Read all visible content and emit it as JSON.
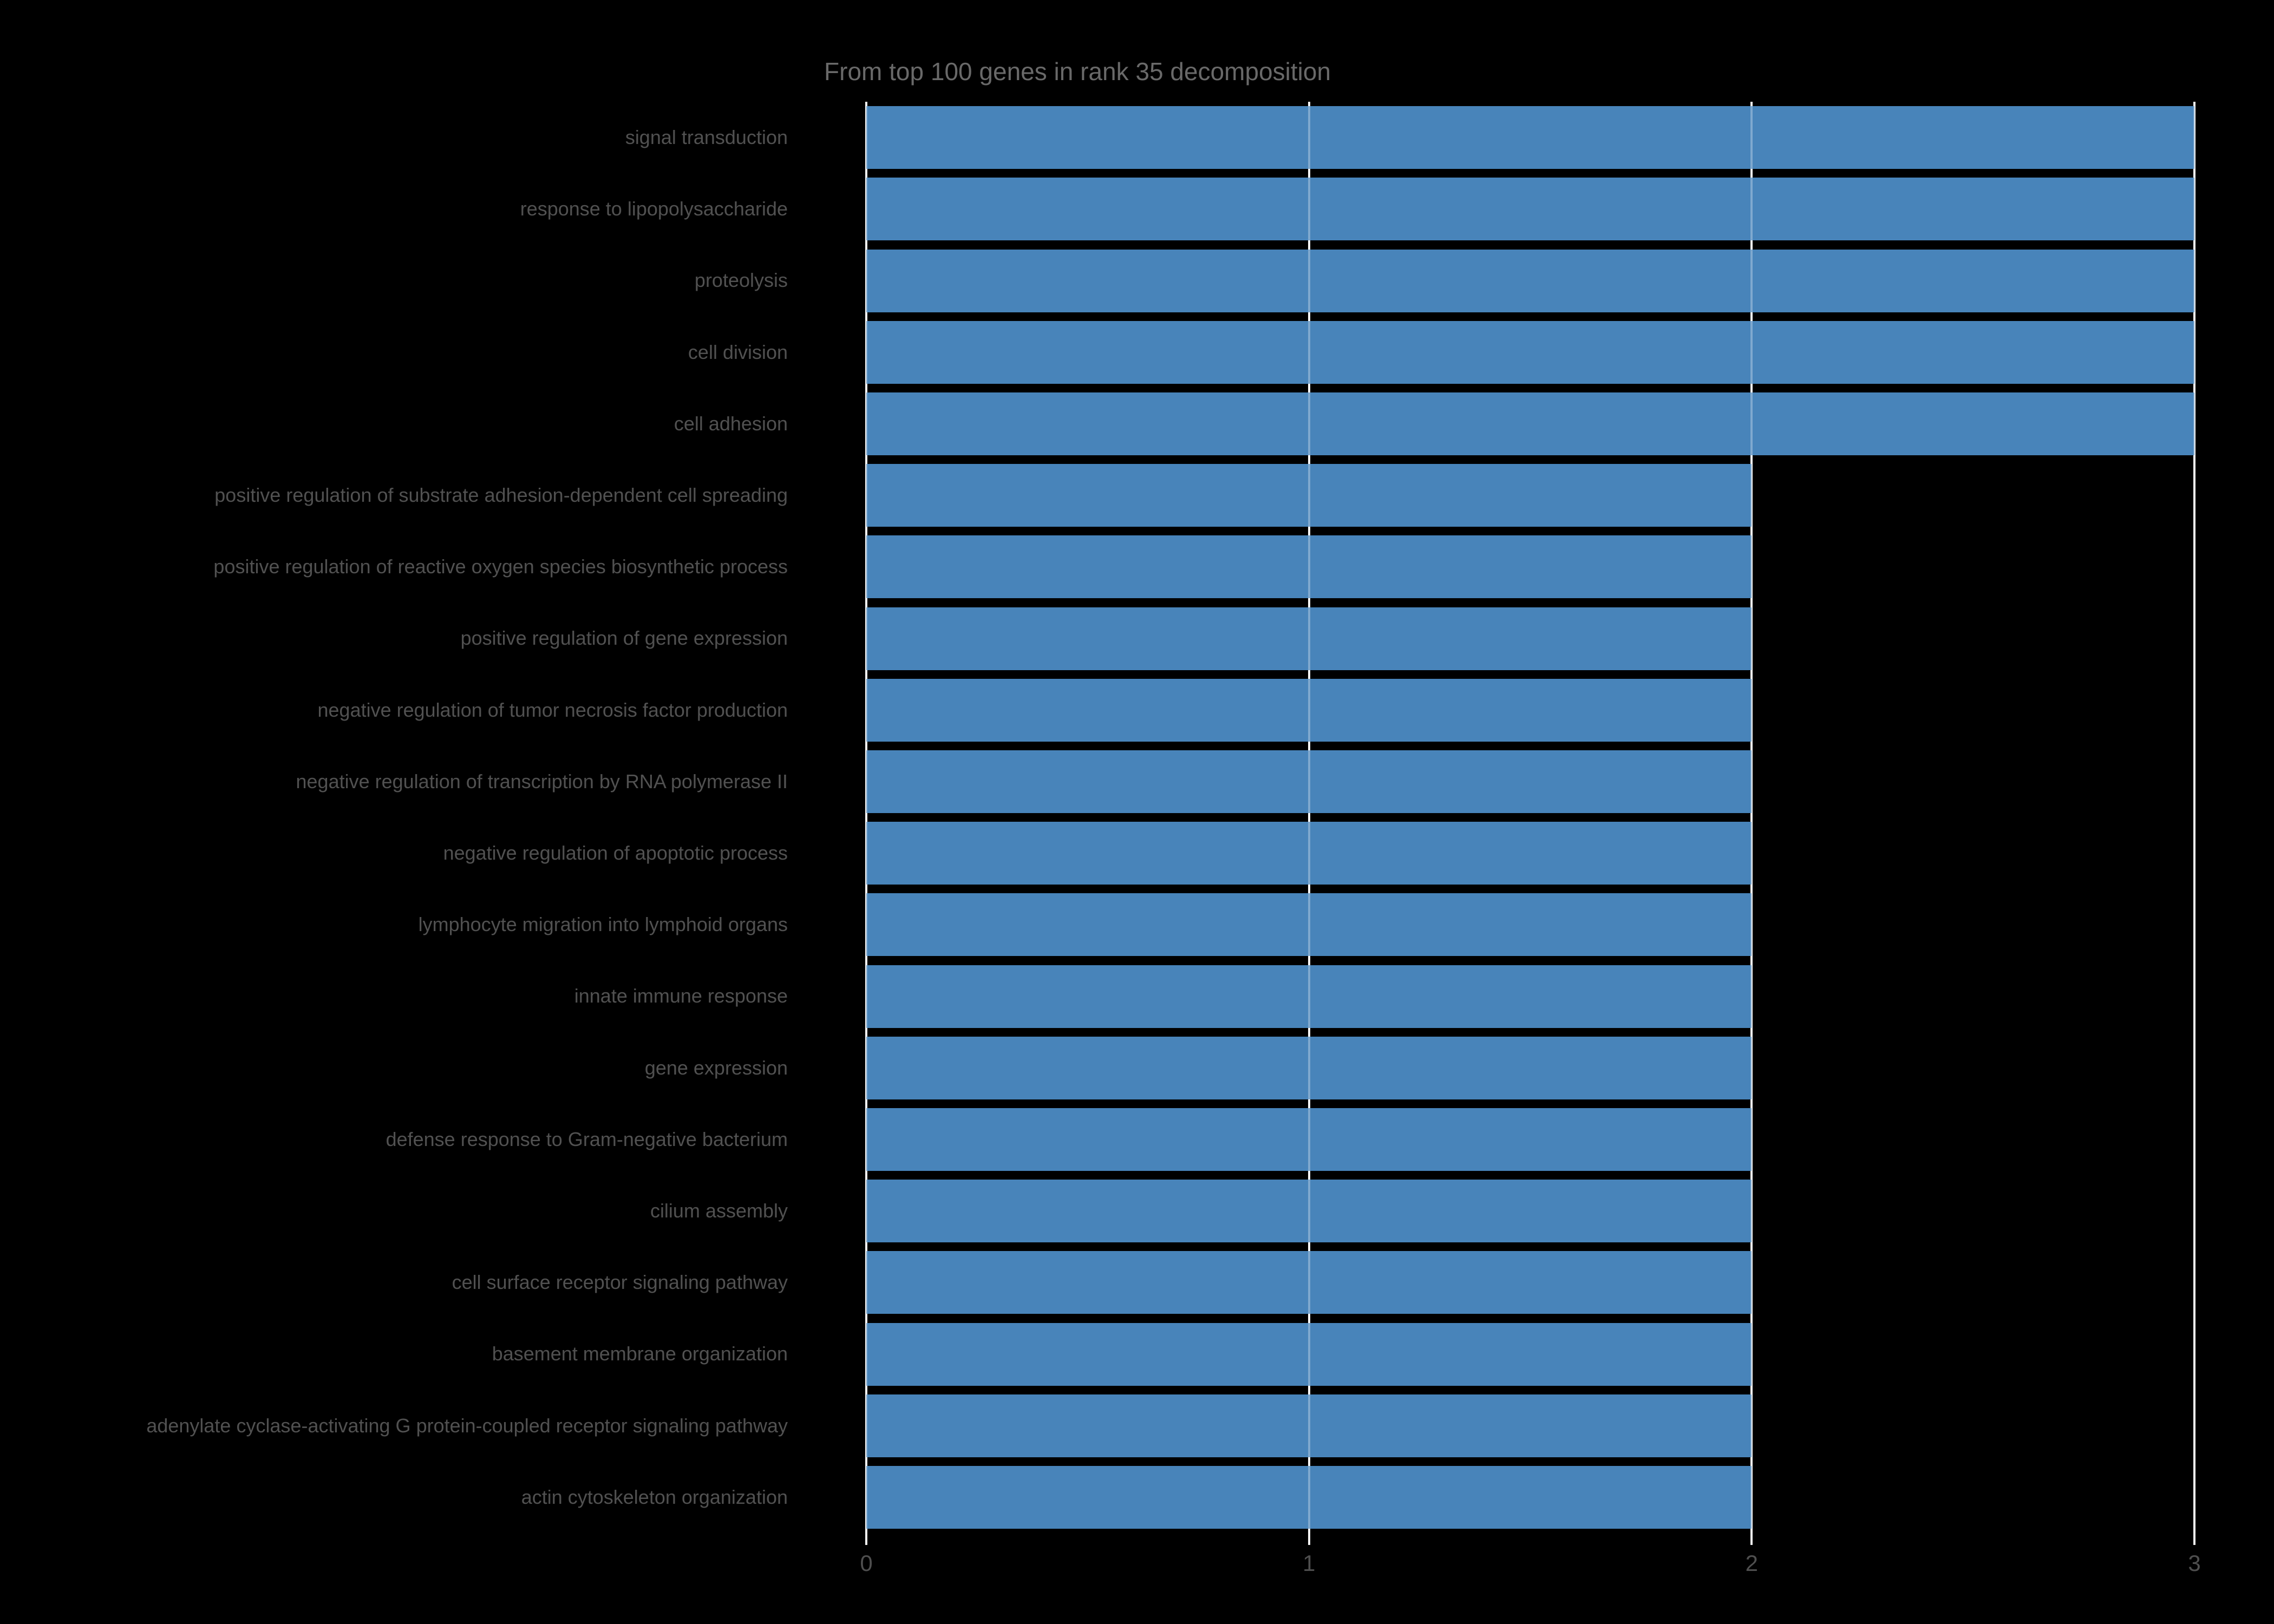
{
  "chart_data": {
    "type": "bar",
    "orientation": "horizontal",
    "title": "From top 100 genes in rank 35 decomposition",
    "categories": [
      "signal transduction",
      "response to lipopolysaccharide",
      "proteolysis",
      "cell division",
      "cell adhesion",
      "positive regulation of substrate adhesion-dependent cell spreading",
      "positive regulation of reactive oxygen species biosynthetic process",
      "positive regulation of gene expression",
      "negative regulation of tumor necrosis factor production",
      "negative regulation of transcription by RNA polymerase II",
      "negative regulation of apoptotic process",
      "lymphocyte migration into lymphoid organs",
      "innate immune response",
      "gene expression",
      "defense response to Gram-negative bacterium",
      "cilium assembly",
      "cell surface receptor signaling pathway",
      "basement membrane organization",
      "adenylate cyclase-activating G protein-coupled receptor signaling pathway",
      "actin cytoskeleton organization"
    ],
    "values": [
      3,
      3,
      3,
      3,
      3,
      2,
      2,
      2,
      2,
      2,
      2,
      2,
      2,
      2,
      2,
      2,
      2,
      2,
      2,
      2
    ],
    "xlabel": "",
    "ylabel": "",
    "xlim": [
      0,
      3
    ],
    "xticks": [
      "0",
      "1",
      "2",
      "3"
    ],
    "grid": "vertical gridlines at each x tick",
    "legend": "none",
    "colors": {
      "background": "#000000",
      "bar": "#4884BA",
      "gridline": "#f2f2f2",
      "title_text": "#696969",
      "label_text": "#515151",
      "tick_text": "#4f4f4f"
    }
  }
}
